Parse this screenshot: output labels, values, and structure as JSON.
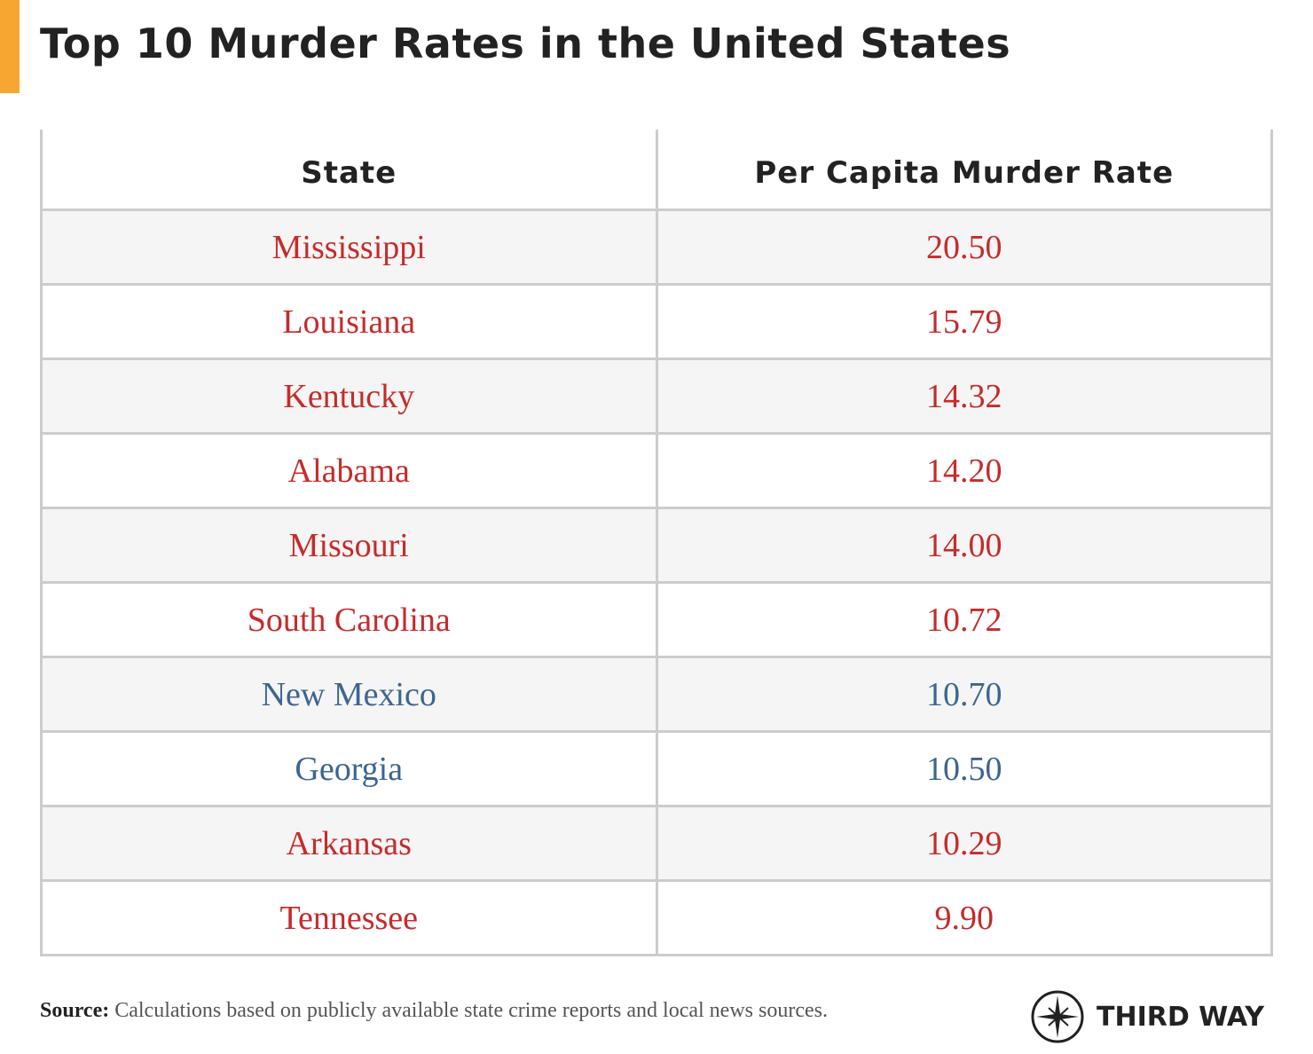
{
  "title": "Top 10 Murder Rates in the United States",
  "table": {
    "columns": [
      "State",
      "Per Capita Murder Rate"
    ],
    "rows": [
      {
        "state": "Mississippi",
        "rate": "20.50",
        "color": "#c62b2b"
      },
      {
        "state": "Louisiana",
        "rate": "15.79",
        "color": "#c62b2b"
      },
      {
        "state": "Kentucky",
        "rate": "14.32",
        "color": "#c62b2b"
      },
      {
        "state": "Alabama",
        "rate": "14.20",
        "color": "#c62b2b"
      },
      {
        "state": "Missouri",
        "rate": "14.00",
        "color": "#c62b2b"
      },
      {
        "state": "South Carolina",
        "rate": "10.72",
        "color": "#c62b2b"
      },
      {
        "state": "New Mexico",
        "rate": "10.70",
        "color": "#3d6590"
      },
      {
        "state": "Georgia",
        "rate": "10.50",
        "color": "#3d6590"
      },
      {
        "state": "Arkansas",
        "rate": "10.29",
        "color": "#c62b2b"
      },
      {
        "state": "Tennessee",
        "rate": "9.90",
        "color": "#c62b2b"
      }
    ]
  },
  "source": {
    "label": "Source:",
    "text": "Calculations based on publicly available state crime reports and local news sources."
  },
  "logo": "THIRD WAY"
}
